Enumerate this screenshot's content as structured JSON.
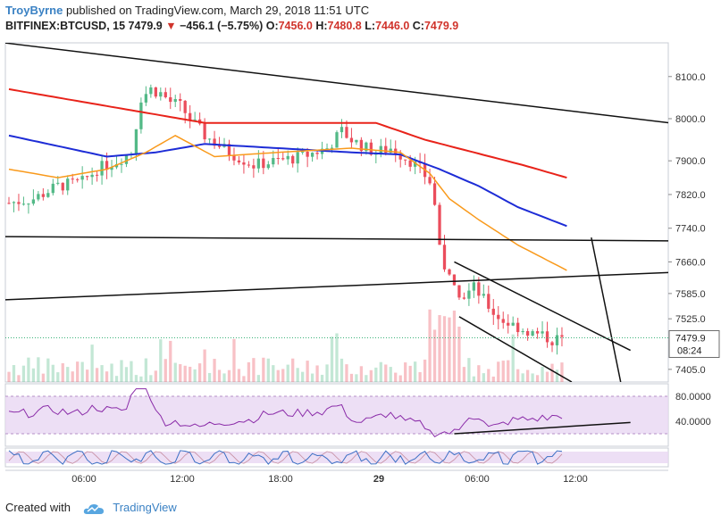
{
  "header": {
    "author": "TroyByrne",
    "published_text": "published on TradingView.com, March 29, 2018 11:51 UTC",
    "symbol": "BITFINEX:BTCUSD, 15",
    "last": "7479.9",
    "arrow": "▼",
    "change": "−456.1 (−5.75%)",
    "o_label": "O:",
    "o": "7456.0",
    "h_label": "H:",
    "h": "7480.8",
    "l_label": "L:",
    "l": "7446.0",
    "c_label": "C:",
    "c": "7479.9"
  },
  "footer": {
    "created_with": "Created with",
    "brand": "TradingView"
  },
  "colors": {
    "up": "#53b987",
    "down": "#eb4d5c",
    "ma_red": "#e8231a",
    "ma_blue": "#1d2cd6",
    "ma_orange": "#f99a1c",
    "rsi": "#8a2ba8",
    "stoch": "#3b6fc4",
    "trendline": "#111111"
  },
  "chart_data": {
    "type": "candlestick",
    "x_ticks": [
      "06:00",
      "12:00",
      "18:00",
      "29",
      "06:00",
      "12:00"
    ],
    "price_ticks": [
      "8100.0",
      "8000.0",
      "7900.0",
      "7820.0",
      "7740.0",
      "7660.0",
      "7585.0",
      "7525.0",
      "7405.0"
    ],
    "price_range": [
      7375,
      8180
    ],
    "last_price_label": "7479.9",
    "countdown_label": "08:24",
    "rsi_ticks": [
      "80.0000",
      "40.0000"
    ],
    "rsi_range": [
      0,
      100
    ],
    "price_path": [
      [
        0,
        7800
      ],
      [
        5,
        7810
      ],
      [
        10,
        7840
      ],
      [
        15,
        7850
      ],
      [
        18,
        7880
      ],
      [
        22,
        7900
      ],
      [
        25,
        7920
      ],
      [
        27,
        8050
      ],
      [
        29,
        8070
      ],
      [
        31,
        8060
      ],
      [
        33,
        8040
      ],
      [
        35,
        8030
      ],
      [
        37,
        8000
      ],
      [
        40,
        7960
      ],
      [
        45,
        7920
      ],
      [
        50,
        7890
      ],
      [
        55,
        7900
      ],
      [
        60,
        7910
      ],
      [
        65,
        7930
      ],
      [
        68,
        7970
      ],
      [
        70,
        7950
      ],
      [
        73,
        7930
      ],
      [
        75,
        7920
      ],
      [
        78,
        7930
      ],
      [
        80,
        7915
      ],
      [
        82,
        7900
      ],
      [
        84,
        7880
      ],
      [
        86,
        7850
      ],
      [
        87,
        7800
      ],
      [
        88,
        7700
      ],
      [
        89,
        7650
      ],
      [
        90,
        7620
      ],
      [
        91,
        7600
      ],
      [
        93,
        7580
      ],
      [
        95,
        7600
      ],
      [
        97,
        7570
      ],
      [
        99,
        7540
      ],
      [
        101,
        7520
      ],
      [
        103,
        7510
      ],
      [
        105,
        7500
      ],
      [
        107,
        7490
      ],
      [
        109,
        7485
      ],
      [
        111,
        7475
      ],
      [
        113,
        7480
      ]
    ],
    "ma_red_path": [
      [
        0,
        8070
      ],
      [
        20,
        8030
      ],
      [
        40,
        7990
      ],
      [
        60,
        7990
      ],
      [
        75,
        7990
      ],
      [
        85,
        7950
      ],
      [
        95,
        7920
      ],
      [
        105,
        7890
      ],
      [
        114,
        7860
      ]
    ],
    "ma_blue_path": [
      [
        0,
        7960
      ],
      [
        10,
        7935
      ],
      [
        20,
        7910
      ],
      [
        30,
        7920
      ],
      [
        40,
        7940
      ],
      [
        55,
        7930
      ],
      [
        70,
        7920
      ],
      [
        80,
        7915
      ],
      [
        88,
        7880
      ],
      [
        96,
        7840
      ],
      [
        104,
        7790
      ],
      [
        114,
        7745
      ]
    ],
    "ma_orange_path": [
      [
        0,
        7880
      ],
      [
        10,
        7860
      ],
      [
        20,
        7880
      ],
      [
        28,
        7920
      ],
      [
        34,
        7960
      ],
      [
        42,
        7910
      ],
      [
        55,
        7920
      ],
      [
        70,
        7930
      ],
      [
        80,
        7920
      ],
      [
        86,
        7870
      ],
      [
        90,
        7810
      ],
      [
        96,
        7760
      ],
      [
        104,
        7700
      ],
      [
        114,
        7640
      ]
    ],
    "trendlines_price": [
      [
        [
          -1,
          8180
        ],
        [
          135,
          7990
        ]
      ],
      [
        [
          -1,
          7720
        ],
        [
          135,
          7710
        ]
      ],
      [
        [
          -1,
          7570
        ],
        [
          135,
          7635
        ]
      ],
      [
        [
          91,
          7660
        ],
        [
          127,
          7450
        ]
      ],
      [
        [
          92,
          7530
        ],
        [
          115,
          7375
        ]
      ],
      [
        [
          119,
          7718
        ],
        [
          125,
          7375
        ]
      ]
    ],
    "rsi_trendline": [
      [
        91,
        20
      ],
      [
        127,
        38
      ]
    ],
    "hline_price": 7479.9
  }
}
